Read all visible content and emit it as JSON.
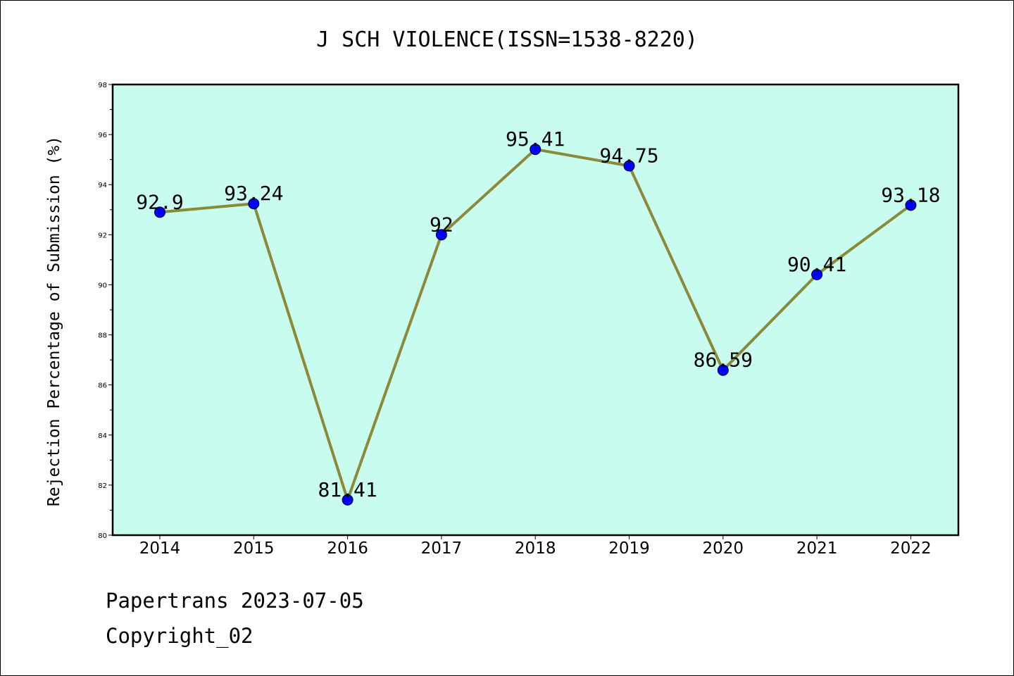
{
  "chart_data": {
    "type": "line",
    "title": "J SCH VIOLENCE(ISSN=1538-8220)",
    "xlabel": "",
    "ylabel": "Rejection Percentage of Submission (%)",
    "categories": [
      "2014",
      "2015",
      "2016",
      "2017",
      "2018",
      "2019",
      "2020",
      "2021",
      "2022"
    ],
    "series": [
      {
        "values": [
          92.9,
          93.24,
          81.41,
          92,
          95.41,
          94.75,
          86.59,
          90.41,
          93.18
        ]
      }
    ],
    "data_labels": [
      "92.9",
      "93.24",
      "81.41",
      "92",
      "95.41",
      "94.75",
      "86.59",
      "90.41",
      "93.18"
    ],
    "ylim": [
      80,
      98
    ],
    "yticks": [
      "80",
      "82",
      "84",
      "86",
      "88",
      "90",
      "92",
      "94",
      "96",
      "98"
    ],
    "grid": false,
    "legend": "none",
    "colors": {
      "plot_background": "#c8fcee",
      "line": "#8b8a3a",
      "marker": "#0000ff"
    }
  },
  "footer": {
    "line1": "Papertrans 2023-07-05",
    "line2": "Copyright_02"
  }
}
